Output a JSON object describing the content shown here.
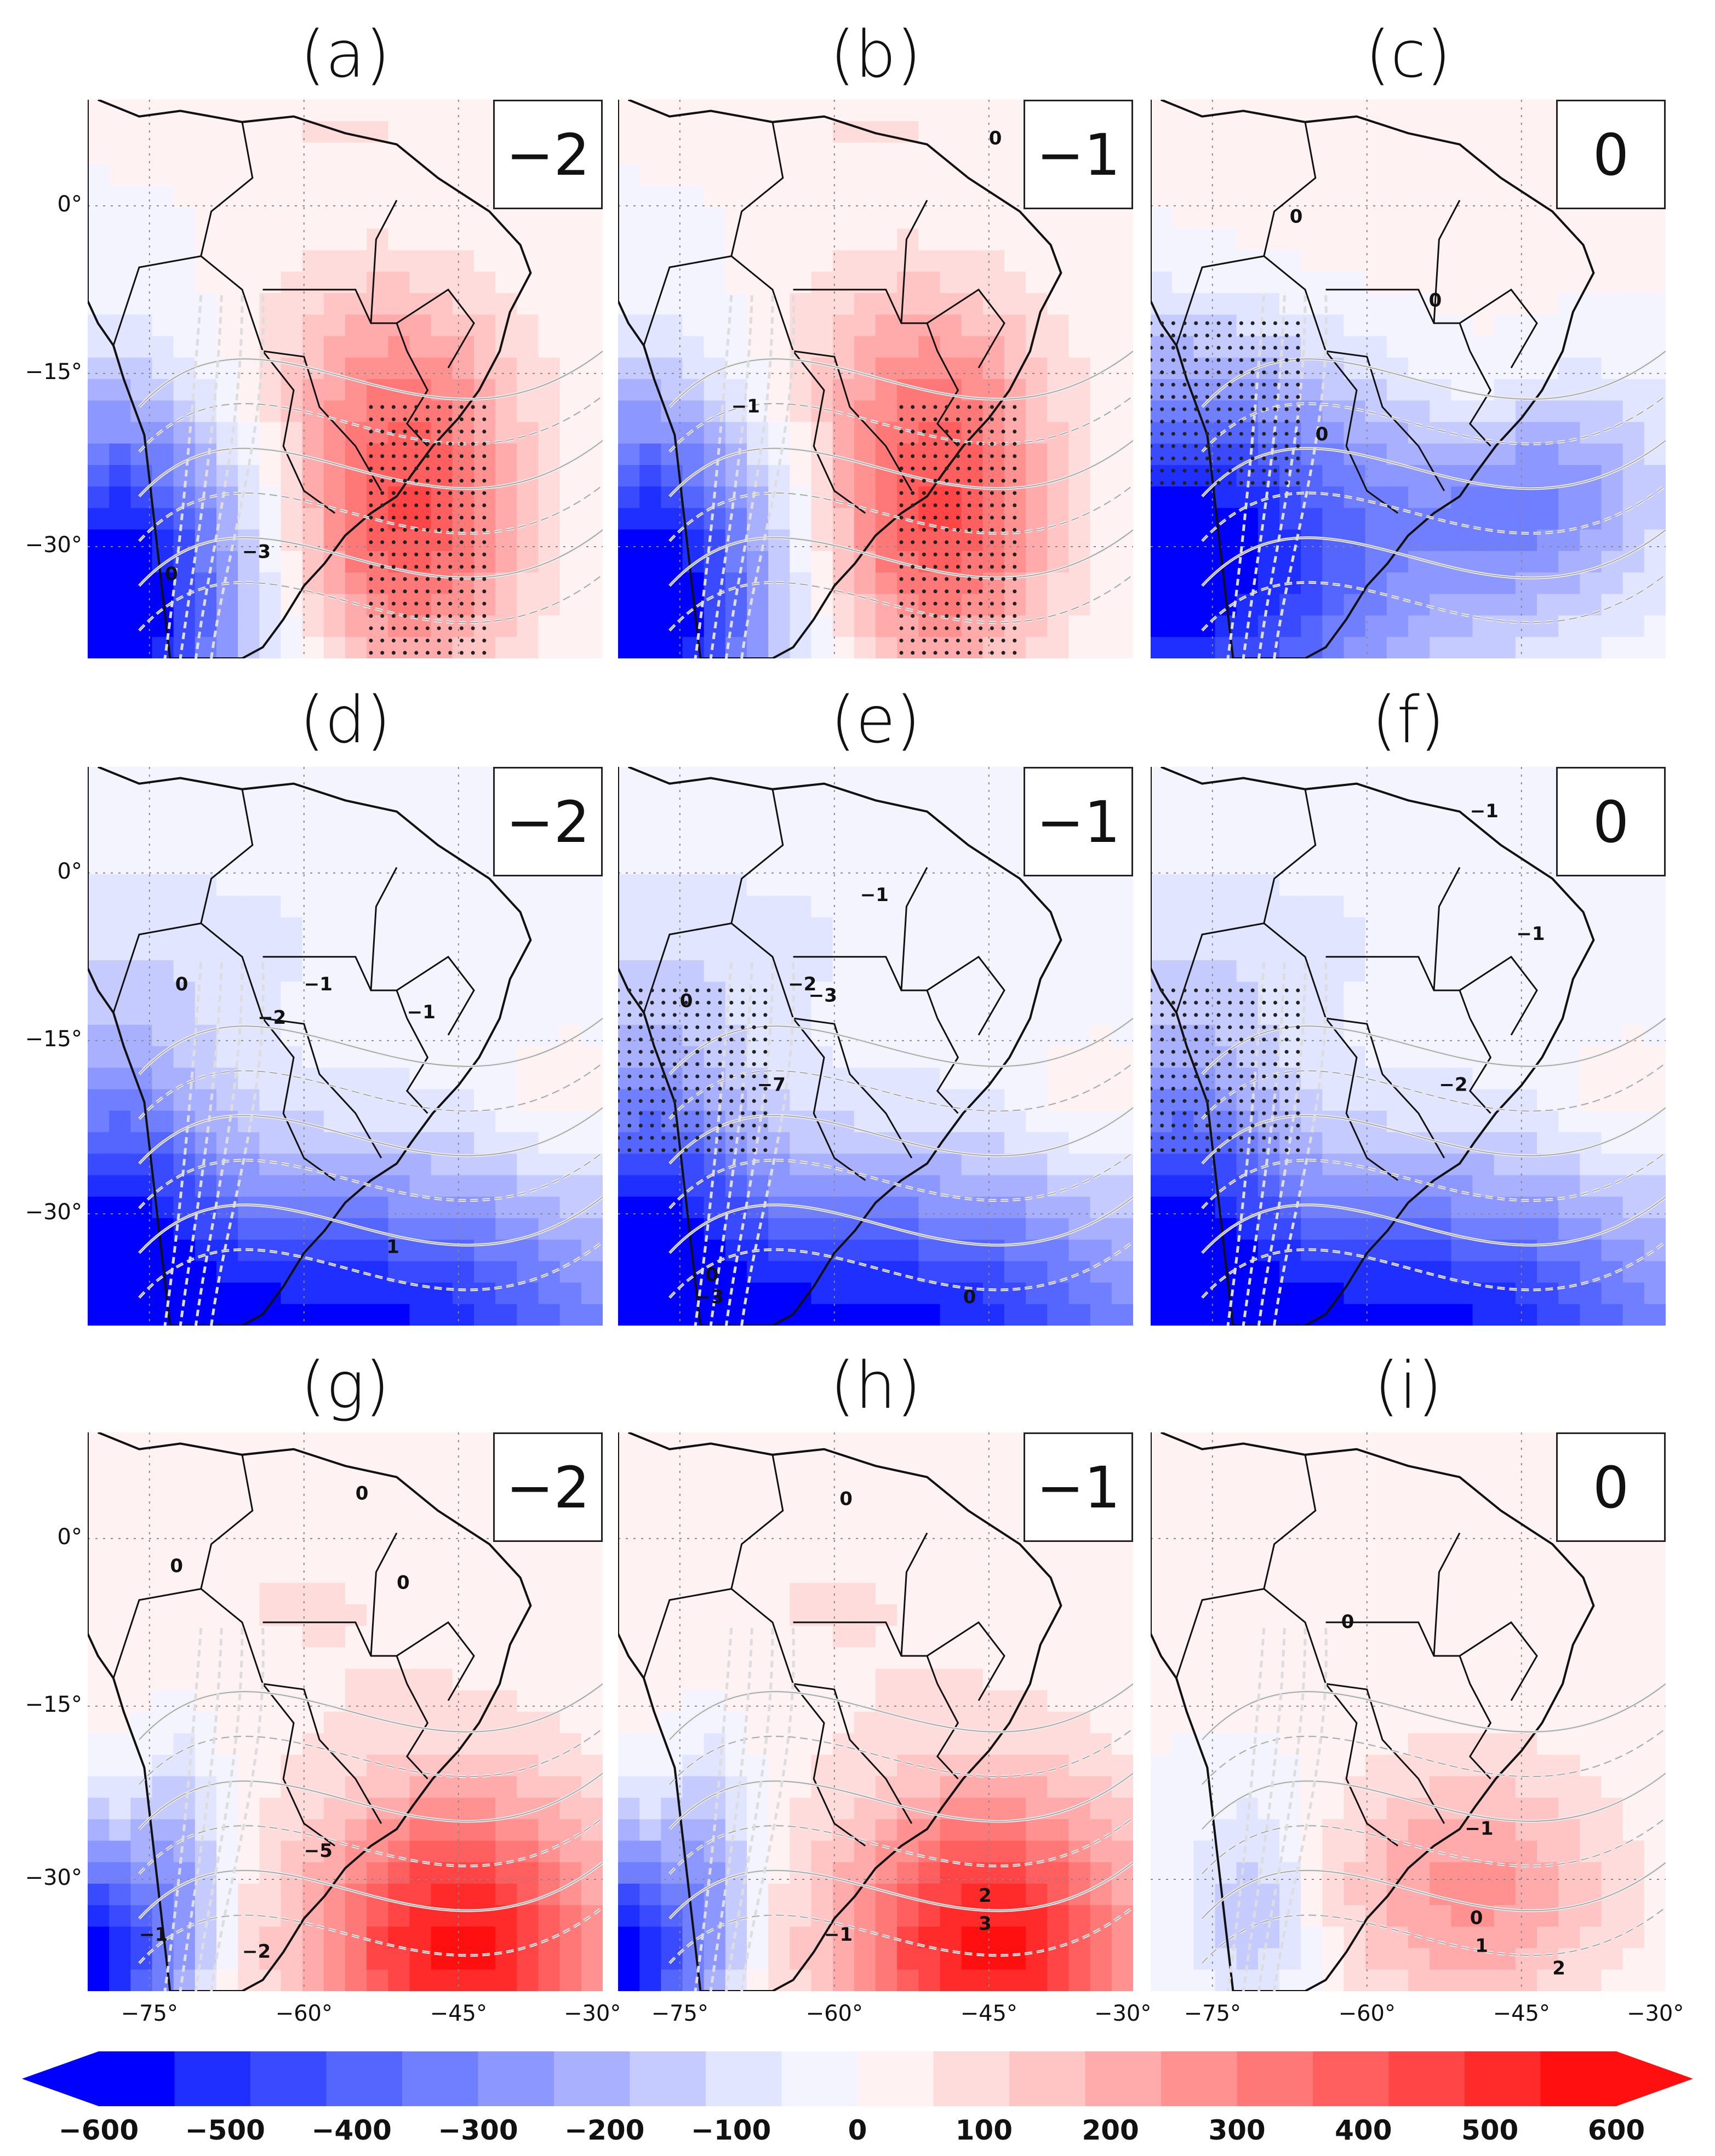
{
  "panels": [
    {
      "id": "a",
      "title": "(a)",
      "lag": "−2",
      "row": 0,
      "col": 0,
      "pattern": "warm_south",
      "contours": [
        "−3",
        "0"
      ]
    },
    {
      "id": "b",
      "title": "(b)",
      "lag": "−1",
      "row": 0,
      "col": 1,
      "pattern": "warm_south",
      "contours": [
        "0",
        "−1"
      ]
    },
    {
      "id": "c",
      "title": "(c)",
      "lag": "0",
      "row": 0,
      "col": 2,
      "pattern": "cold_sw",
      "contours": [
        "0",
        "0",
        "0"
      ]
    },
    {
      "id": "d",
      "title": "(d)",
      "lag": "−2",
      "row": 1,
      "col": 0,
      "pattern": "cold_south",
      "contours": [
        "−1",
        "0",
        "−2",
        "−1",
        "1"
      ]
    },
    {
      "id": "e",
      "title": "(e)",
      "lag": "−1",
      "row": 1,
      "col": 1,
      "pattern": "cold_south",
      "contours": [
        "−1",
        "−2",
        "0",
        "−3",
        "−7",
        "0",
        "−3",
        "0"
      ]
    },
    {
      "id": "f",
      "title": "(f)",
      "lag": "0",
      "row": 1,
      "col": 2,
      "pattern": "cold_south",
      "contours": [
        "−1",
        "−1",
        "−2"
      ]
    },
    {
      "id": "g",
      "title": "(g)",
      "lag": "−2",
      "row": 2,
      "col": 0,
      "pattern": "warm_se",
      "contours": [
        "0",
        "0",
        "0",
        "−5",
        "−1",
        "−2"
      ]
    },
    {
      "id": "h",
      "title": "(h)",
      "lag": "−1",
      "row": 2,
      "col": 1,
      "pattern": "warm_se",
      "contours": [
        "0",
        "2",
        "3",
        "−1"
      ]
    },
    {
      "id": "i",
      "title": "(i)",
      "lag": "0",
      "row": 2,
      "col": 2,
      "pattern": "warm_se_weak",
      "contours": [
        "0",
        "−1",
        "0",
        "1",
        "2"
      ]
    }
  ],
  "lat_labels": [
    "0°",
    "−15°",
    "−30°"
  ],
  "lon_labels": [
    "−75°",
    "−60°",
    "−45°",
    "−30°"
  ],
  "colorbar": {
    "ticks": [
      "−600",
      "−500",
      "−400",
      "−300",
      "−200",
      "−100",
      "0",
      "100",
      "200",
      "300",
      "400",
      "500",
      "600"
    ],
    "colors": [
      "#0000ff",
      "#1f2fff",
      "#3a4bff",
      "#5566ff",
      "#6f7fff",
      "#8c98ff",
      "#a9b1ff",
      "#c6cbff",
      "#e2e5ff",
      "#f3f4ff",
      "#fff2f2",
      "#ffdcdc",
      "#ffc4c4",
      "#ffabab",
      "#ff9191",
      "#ff7878",
      "#ff5f5f",
      "#ff4545",
      "#ff2a2a",
      "#ff0f0f"
    ]
  }
}
